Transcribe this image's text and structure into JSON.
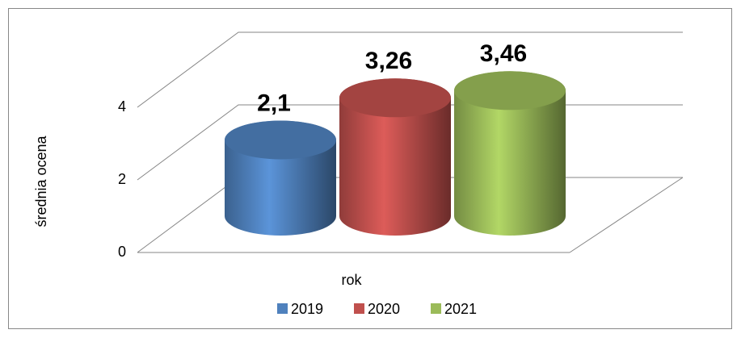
{
  "chart_data": {
    "type": "bar3d",
    "y_label": "średnia ocena",
    "x_label": "rok",
    "series": [
      {
        "name": "2019",
        "color": "#4f81bd",
        "values": [
          2.1
        ],
        "value_labels": [
          "2,1"
        ]
      },
      {
        "name": "2020",
        "color": "#c0504d",
        "values": [
          3.26
        ],
        "value_labels": [
          "3,26"
        ]
      },
      {
        "name": "2021",
        "color": "#9bbb59",
        "values": [
          3.46
        ],
        "value_labels": [
          "3,46"
        ]
      }
    ],
    "ylim": [
      0,
      4
    ],
    "yticks": [
      0,
      2,
      4
    ],
    "grid": true
  }
}
